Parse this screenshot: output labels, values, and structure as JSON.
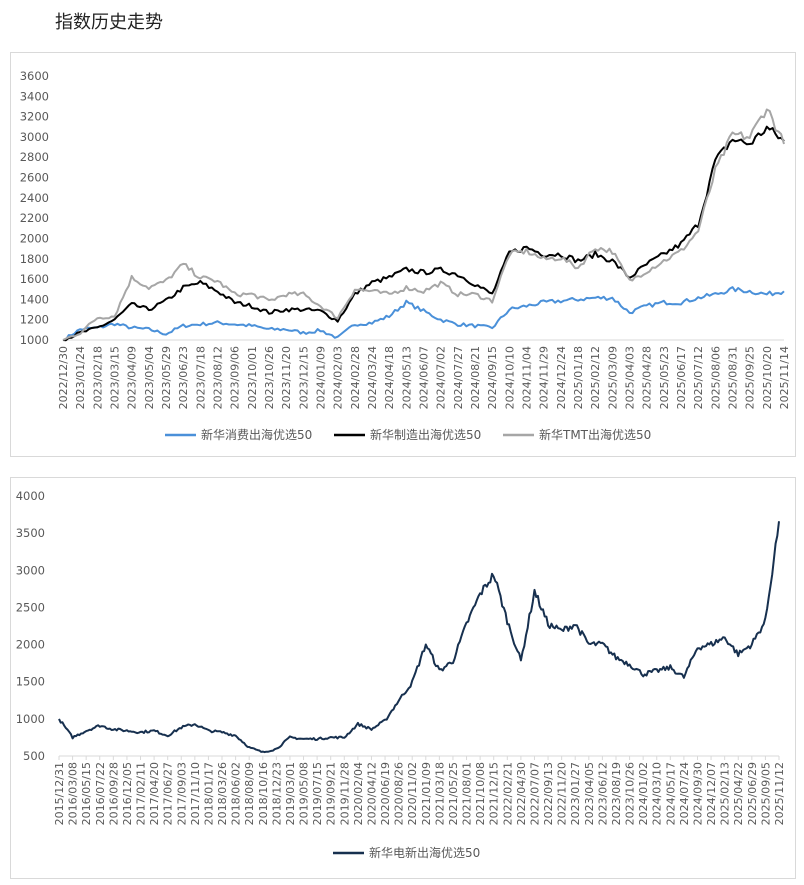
{
  "page_title": "指数历史走势",
  "chart_data": [
    {
      "type": "line",
      "ylim": [
        1000,
        3600
      ],
      "yticks": [
        "1000",
        "1200",
        "1400",
        "1600",
        "1800",
        "2000",
        "2200",
        "2400",
        "2600",
        "2800",
        "3000",
        "3200",
        "3400",
        "3600"
      ],
      "legend_position": "bottom",
      "grid": false,
      "categories": [
        "2022/12/30",
        "2023/01/24",
        "2023/02/18",
        "2023/03/15",
        "2023/04/09",
        "2023/05/04",
        "2023/05/29",
        "2023/06/23",
        "2023/07/18",
        "2023/08/12",
        "2023/09/06",
        "2023/10/01",
        "2023/10/26",
        "2023/11/20",
        "2023/12/15",
        "2024/01/09",
        "2024/02/03",
        "2024/02/28",
        "2024/03/24",
        "2024/04/18",
        "2024/05/13",
        "2024/06/07",
        "2024/07/02",
        "2024/07/27",
        "2024/08/21",
        "2024/09/15",
        "2024/10/10",
        "2024/11/04",
        "2024/11/29",
        "2024/12/24",
        "2025/01/18",
        "2025/02/12",
        "2025/03/09",
        "2025/04/03",
        "2025/04/28",
        "2025/05/23",
        "2025/06/17",
        "2025/07/12",
        "2025/08/06",
        "2025/08/31",
        "2025/09/25",
        "2025/10/20",
        "2025/11/14"
      ],
      "series": [
        {
          "name": "新华消费出海优选50",
          "color": "#4a90d9",
          "values": [
            1000,
            1105,
            1120,
            1160,
            1120,
            1105,
            1060,
            1140,
            1155,
            1170,
            1155,
            1140,
            1105,
            1105,
            1070,
            1095,
            1020,
            1155,
            1170,
            1235,
            1370,
            1285,
            1200,
            1155,
            1140,
            1120,
            1300,
            1335,
            1370,
            1385,
            1400,
            1415,
            1415,
            1270,
            1335,
            1370,
            1370,
            1415,
            1450,
            1500,
            1480,
            1450,
            1480
          ]
        },
        {
          "name": "新华制造出海优选50",
          "color": "#000000",
          "values": [
            1000,
            1070,
            1120,
            1200,
            1350,
            1300,
            1385,
            1515,
            1565,
            1480,
            1370,
            1335,
            1270,
            1300,
            1300,
            1285,
            1190,
            1450,
            1565,
            1615,
            1695,
            1665,
            1690,
            1645,
            1550,
            1450,
            1860,
            1910,
            1845,
            1845,
            1780,
            1845,
            1780,
            1615,
            1745,
            1845,
            1945,
            2140,
            2765,
            2975,
            2930,
            3090,
            2960
          ]
        },
        {
          "name": "新华TMT出海优选50",
          "color": "#a6a6a6",
          "values": [
            1000,
            1070,
            1220,
            1235,
            1615,
            1515,
            1580,
            1745,
            1615,
            1580,
            1450,
            1450,
            1385,
            1450,
            1450,
            1335,
            1220,
            1500,
            1480,
            1450,
            1515,
            1480,
            1560,
            1450,
            1450,
            1385,
            1845,
            1875,
            1795,
            1810,
            1710,
            1910,
            1875,
            1580,
            1680,
            1780,
            1875,
            2075,
            2665,
            3025,
            2995,
            3290,
            2930
          ]
        }
      ]
    },
    {
      "type": "line",
      "ylim": [
        500,
        4000
      ],
      "yticks": [
        "500",
        "1000",
        "1500",
        "2000",
        "2500",
        "3000",
        "3500",
        "4000"
      ],
      "legend_position": "bottom",
      "grid": false,
      "categories": [
        "2015/12/31",
        "2016/03/08",
        "2016/05/15",
        "2016/07/22",
        "2016/09/28",
        "2016/12/05",
        "2017/02/11",
        "2017/04/20",
        "2017/06/27",
        "2017/09/03",
        "2017/11/10",
        "2018/01/17",
        "2018/03/26",
        "2018/06/02",
        "2018/08/09",
        "2018/10/16",
        "2018/12/23",
        "2019/03/01",
        "2019/05/08",
        "2019/07/15",
        "2019/09/21",
        "2019/11/28",
        "2020/02/04",
        "2020/04/12",
        "2020/06/19",
        "2020/08/26",
        "2020/11/02",
        "2021/01/09",
        "2021/03/18",
        "2021/05/25",
        "2021/08/01",
        "2021/10/08",
        "2021/12/15",
        "2022/02/21",
        "2022/04/30",
        "2022/07/07",
        "2022/09/13",
        "2022/11/20",
        "2023/01/27",
        "2023/04/05",
        "2023/06/12",
        "2023/08/19",
        "2023/10/26",
        "2024/01/02",
        "2024/03/10",
        "2024/05/17",
        "2024/07/24",
        "2024/09/30",
        "2024/12/07",
        "2025/02/13",
        "2025/04/22",
        "2025/06/29",
        "2025/09/05",
        "2025/11/12"
      ],
      "series": [
        {
          "name": "新华电新出海优选50",
          "color": "#17304f",
          "values": [
            1000,
            750,
            840,
            910,
            860,
            840,
            820,
            840,
            775,
            885,
            930,
            840,
            820,
            775,
            615,
            550,
            595,
            750,
            730,
            730,
            750,
            750,
            930,
            860,
            975,
            1245,
            1490,
            2005,
            1645,
            1780,
            2275,
            2680,
            2945,
            2320,
            1780,
            2720,
            2275,
            2185,
            2275,
            2005,
            2005,
            1825,
            1735,
            1600,
            1645,
            1690,
            1560,
            1960,
            2005,
            2095,
            1870,
            2005,
            2320,
            3660
          ]
        }
      ]
    }
  ]
}
